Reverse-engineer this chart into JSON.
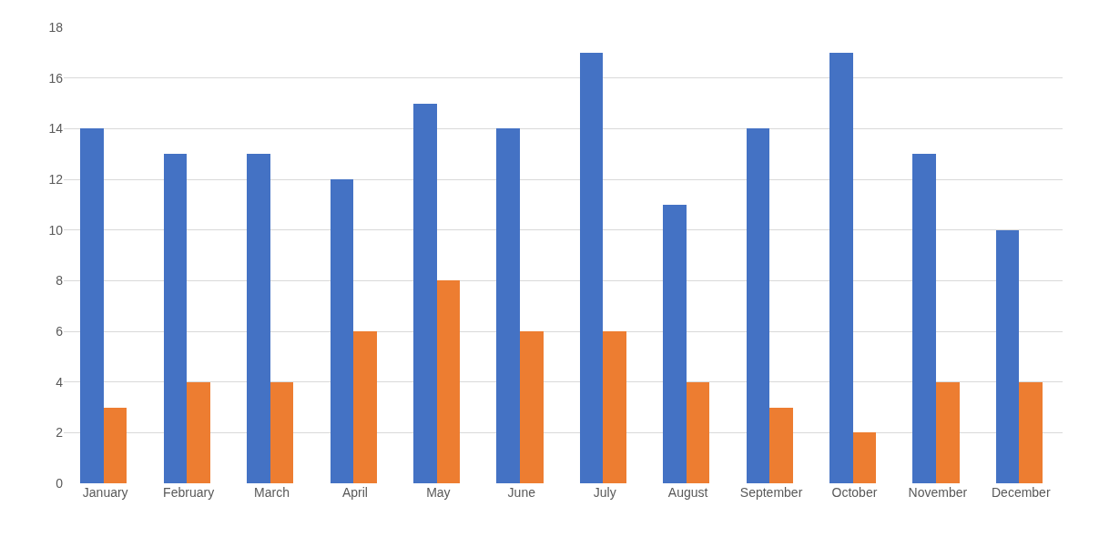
{
  "chart_data": {
    "type": "bar",
    "categories": [
      "January",
      "February",
      "March",
      "April",
      "May",
      "June",
      "July",
      "August",
      "September",
      "October",
      "November",
      "December"
    ],
    "series": [
      {
        "color": "#4472c4",
        "values": [
          14,
          13,
          13,
          12,
          15,
          14,
          17,
          11,
          14,
          17,
          13,
          10
        ]
      },
      {
        "color": "#ed7d31",
        "values": [
          3,
          4,
          4,
          6,
          8,
          6,
          6,
          4,
          3,
          2,
          4,
          4
        ]
      }
    ],
    "ylim": [
      0,
      18
    ],
    "yticks": [
      0,
      2,
      4,
      6,
      8,
      10,
      12,
      14,
      16,
      18
    ],
    "grid": "y"
  }
}
